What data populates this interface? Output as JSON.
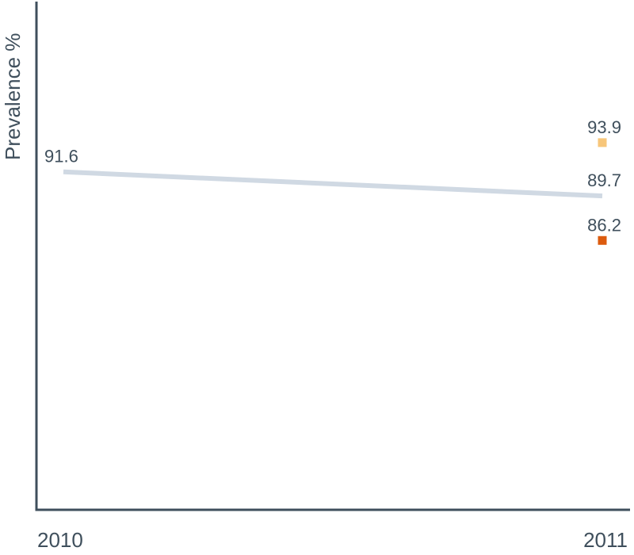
{
  "chart_data": {
    "type": "line",
    "title": "",
    "xlabel": "",
    "ylabel": "Prevalence %",
    "categories": [
      "2010",
      "2011"
    ],
    "ylim": [
      65,
      105
    ],
    "grid": false,
    "legend": "none",
    "series": [
      {
        "color": "#d0d9e3",
        "values": [
          91.6,
          89.7
        ],
        "labels": [
          "91.6",
          "89.7"
        ]
      }
    ],
    "points": [
      {
        "category": "2011",
        "value": 93.9,
        "label": "93.9",
        "color": "#f7c67a"
      },
      {
        "category": "2011",
        "value": 86.2,
        "label": "86.2",
        "color": "#dc5b0e"
      }
    ],
    "colors": {
      "axis": "#3f4f5c",
      "text": "#3f4f5c"
    }
  }
}
